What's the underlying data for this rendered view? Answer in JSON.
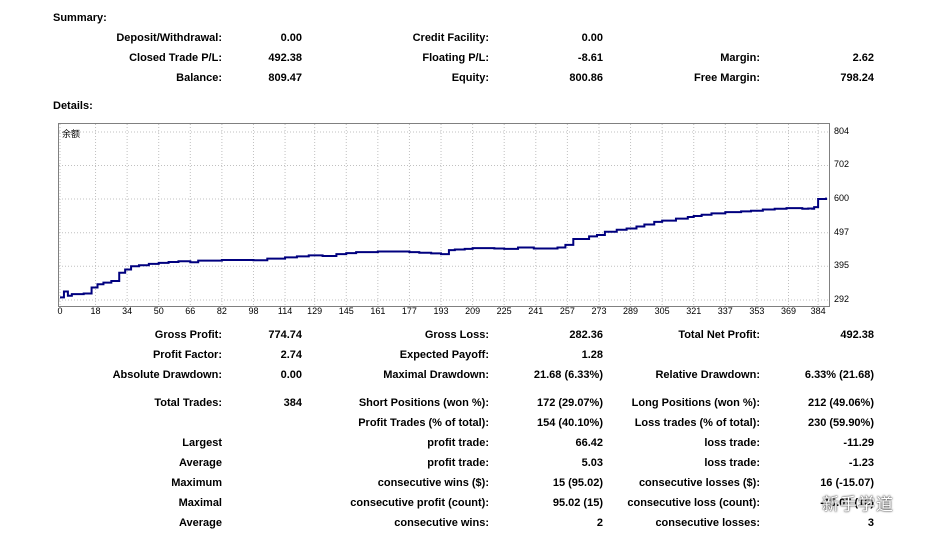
{
  "summary": {
    "title": "Summary:",
    "deposit_label": "Deposit/Withdrawal:",
    "deposit_value": "0.00",
    "credit_label": "Credit Facility:",
    "credit_value": "0.00",
    "closed_pl_label": "Closed Trade P/L:",
    "closed_pl_value": "492.38",
    "floating_label": "Floating P/L:",
    "floating_value": "-8.61",
    "margin_label": "Margin:",
    "margin_value": "2.62",
    "balance_label": "Balance:",
    "balance_value": "809.47",
    "equity_label": "Equity:",
    "equity_value": "800.86",
    "free_margin_label": "Free Margin:",
    "free_margin_value": "798.24"
  },
  "details": {
    "title": "Details:"
  },
  "chart_data": {
    "type": "line",
    "series": [
      {
        "name": "余额",
        "color": "#00007f"
      }
    ],
    "x_ticks": [
      "0",
      "18",
      "34",
      "50",
      "66",
      "82",
      "98",
      "114",
      "129",
      "145",
      "161",
      "177",
      "193",
      "209",
      "225",
      "241",
      "257",
      "273",
      "289",
      "305",
      "321",
      "337",
      "353",
      "369",
      "384"
    ],
    "y_ticks": [
      "804",
      "702",
      "600",
      "497",
      "395",
      "292"
    ],
    "ylim": [
      292,
      804
    ],
    "xlim": [
      0,
      388
    ],
    "x": [
      0,
      2,
      4,
      6,
      8,
      12,
      16,
      19,
      22,
      26,
      30,
      33,
      36,
      40,
      45,
      50,
      55,
      60,
      66,
      70,
      76,
      82,
      90,
      98,
      105,
      114,
      120,
      126,
      133,
      140,
      145,
      150,
      155,
      161,
      166,
      172,
      177,
      182,
      188,
      193,
      197,
      200,
      205,
      209,
      215,
      220,
      225,
      232,
      240,
      247,
      252,
      256,
      260,
      264,
      268,
      272,
      276,
      282,
      287,
      292,
      296,
      301,
      305,
      308,
      312,
      318,
      321,
      325,
      330,
      337,
      342,
      345,
      350,
      356,
      362,
      368,
      372,
      376,
      379,
      381,
      382,
      384,
      388
    ],
    "y": [
      300,
      318,
      305,
      310,
      310,
      312,
      330,
      340,
      345,
      350,
      375,
      385,
      395,
      398,
      402,
      405,
      408,
      410,
      407,
      412,
      412,
      414,
      414,
      413,
      418,
      422,
      425,
      428,
      426,
      432,
      435,
      438,
      438,
      440,
      440,
      440,
      438,
      436,
      434,
      432,
      444,
      446,
      448,
      450,
      450,
      449,
      448,
      452,
      449,
      449,
      452,
      460,
      478,
      478,
      486,
      490,
      500,
      506,
      510,
      516,
      522,
      530,
      534,
      534,
      540,
      545,
      548,
      552,
      556,
      560,
      560,
      562,
      564,
      568,
      570,
      572,
      572,
      570,
      571,
      570,
      575,
      600,
      604
    ]
  },
  "stats": {
    "gross_profit_label": "Gross Profit:",
    "gross_profit_value": "774.74",
    "gross_loss_label": "Gross Loss:",
    "gross_loss_value": "282.36",
    "net_profit_label": "Total Net Profit:",
    "net_profit_value": "492.38",
    "profit_factor_label": "Profit Factor:",
    "profit_factor_value": "2.74",
    "expected_payoff_label": "Expected Payoff:",
    "expected_payoff_value": "1.28",
    "abs_dd_label": "Absolute Drawdown:",
    "abs_dd_value": "0.00",
    "max_dd_label": "Maximal Drawdown:",
    "max_dd_value": "21.68 (6.33%)",
    "rel_dd_label": "Relative Drawdown:",
    "rel_dd_value": "6.33% (21.68)",
    "total_trades_label": "Total Trades:",
    "total_trades_value": "384",
    "short_label": "Short Positions (won %):",
    "short_value": "172 (29.07%)",
    "long_label": "Long Positions (won %):",
    "long_value": "212 (49.06%)",
    "profit_trades_label": "Profit Trades (% of total):",
    "profit_trades_value": "154 (40.10%)",
    "loss_trades_label": "Loss trades (% of total):",
    "loss_trades_value": "230 (59.90%)",
    "largest_label": "Largest",
    "largest_profit_label": "profit trade:",
    "largest_profit_value": "66.42",
    "largest_loss_label": "loss trade:",
    "largest_loss_value": "-11.29",
    "average_label": "Average",
    "avg_profit_label": "profit trade:",
    "avg_profit_value": "5.03",
    "avg_loss_label": "loss trade:",
    "avg_loss_value": "-1.23",
    "maximum_label": "Maximum",
    "max_cons_wins_label": "consecutive wins ($):",
    "max_cons_wins_value": "15 (95.02)",
    "max_cons_losses_label": "consecutive losses ($):",
    "max_cons_losses_value": "16 (-15.07)",
    "maximal_label": "Maximal",
    "maximal_cons_profit_label": "consecutive profit (count):",
    "maximal_cons_profit_value": "95.02 (15)",
    "maximal_cons_loss_label": "consecutive loss (count):",
    "maximal_cons_loss_value": "-15.07 (16)",
    "average2_label": "Average",
    "avg_cons_wins_label": "consecutive wins:",
    "avg_cons_wins_value": "2",
    "avg_cons_losses_label": "consecutive losses:",
    "avg_cons_losses_value": "3"
  },
  "watermark": "新手学道"
}
